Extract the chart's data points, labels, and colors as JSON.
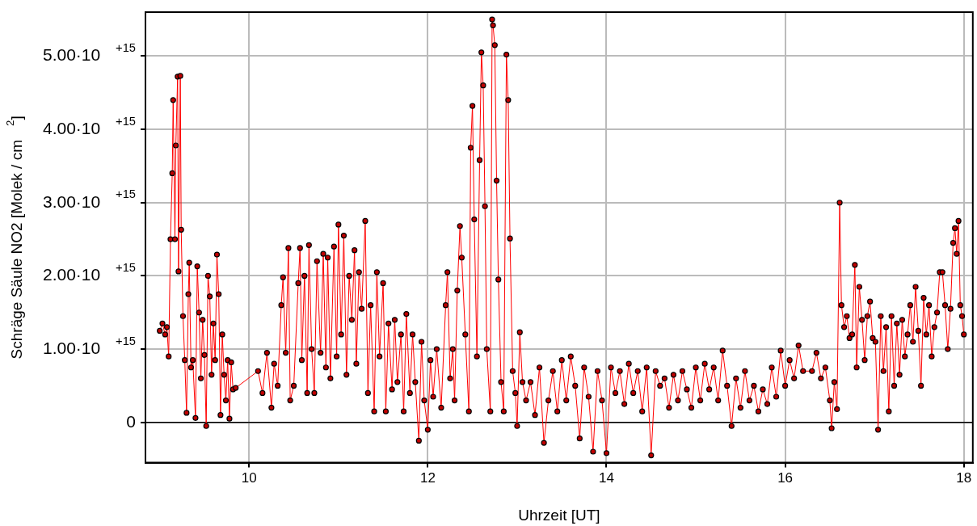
{
  "chart_data": {
    "type": "line",
    "xlabel": "Uhrzeit [UT]",
    "ylabel": "Schräge Säule NO2 [Molek / cm$^{2}$]",
    "xlim": [
      8.84,
      18.1
    ],
    "xticks": [
      10,
      12,
      14,
      16,
      18
    ],
    "ylim": [
      -550000000000000.0,
      5600000000000000.0
    ],
    "yticks": [
      {
        "value": 0,
        "label": "0"
      },
      {
        "value": 1000000000000000.0,
        "label": "1.00·10$^{+15}$"
      },
      {
        "value": 2000000000000000.0,
        "label": "2.00·10$^{+15}$"
      },
      {
        "value": 3000000000000000.0,
        "label": "3.00·10$^{+15}$"
      },
      {
        "value": 4000000000000000.0,
        "label": "4.00·10$^{+15}$"
      },
      {
        "value": 5000000000000000.0,
        "label": "5.00·10$^{+15}$"
      }
    ],
    "grid": true,
    "legend": false,
    "marker": "circle",
    "line_style": "solid",
    "ref_lines": [
      {
        "axis": "y",
        "value": 0,
        "color": "#000000"
      }
    ],
    "series": [
      {
        "color": "#ff0000",
        "x": [
          9.0,
          9.03,
          9.06,
          9.08,
          9.1,
          9.12,
          9.14,
          9.15,
          9.17,
          9.18,
          9.2,
          9.21,
          9.23,
          9.24,
          9.26,
          9.28,
          9.3,
          9.32,
          9.33,
          9.35,
          9.37,
          9.4,
          9.42,
          9.44,
          9.46,
          9.48,
          9.5,
          9.52,
          9.54,
          9.56,
          9.58,
          9.6,
          9.62,
          9.64,
          9.66,
          9.68,
          9.7,
          9.72,
          9.74,
          9.76,
          9.78,
          9.8,
          9.82,
          9.85,
          10.1,
          10.15,
          10.2,
          10.25,
          10.28,
          10.32,
          10.36,
          10.38,
          10.41,
          10.44,
          10.46,
          10.5,
          10.55,
          10.57,
          10.59,
          10.62,
          10.65,
          10.67,
          10.7,
          10.73,
          10.76,
          10.8,
          10.83,
          10.86,
          10.88,
          10.91,
          10.95,
          10.98,
          11.0,
          11.03,
          11.06,
          11.09,
          11.12,
          11.15,
          11.18,
          11.2,
          11.23,
          11.26,
          11.3,
          11.33,
          11.36,
          11.4,
          11.43,
          11.46,
          11.5,
          11.53,
          11.56,
          11.6,
          11.63,
          11.66,
          11.7,
          11.73,
          11.76,
          11.8,
          11.83,
          11.86,
          11.9,
          11.93,
          11.96,
          12.0,
          12.03,
          12.06,
          12.1,
          12.15,
          12.2,
          12.22,
          12.25,
          12.28,
          12.3,
          12.33,
          12.36,
          12.38,
          12.42,
          12.46,
          12.48,
          12.5,
          12.52,
          12.55,
          12.58,
          12.6,
          12.62,
          12.64,
          12.66,
          12.7,
          12.72,
          12.73,
          12.75,
          12.77,
          12.79,
          12.82,
          12.85,
          12.88,
          12.9,
          12.92,
          12.95,
          12.98,
          13.0,
          13.03,
          13.06,
          13.1,
          13.15,
          13.2,
          13.25,
          13.3,
          13.35,
          13.4,
          13.45,
          13.5,
          13.55,
          13.6,
          13.65,
          13.7,
          13.75,
          13.8,
          13.85,
          13.9,
          13.95,
          14.0,
          14.05,
          14.1,
          14.15,
          14.2,
          14.25,
          14.3,
          14.35,
          14.4,
          14.45,
          14.5,
          14.55,
          14.6,
          14.65,
          14.7,
          14.75,
          14.8,
          14.85,
          14.9,
          14.95,
          15.0,
          15.05,
          15.1,
          15.15,
          15.2,
          15.25,
          15.3,
          15.35,
          15.4,
          15.45,
          15.5,
          15.55,
          15.6,
          15.65,
          15.7,
          15.75,
          15.8,
          15.85,
          15.9,
          15.95,
          16.0,
          16.05,
          16.1,
          16.15,
          16.2,
          16.3,
          16.35,
          16.4,
          16.45,
          16.5,
          16.52,
          16.55,
          16.58,
          16.61,
          16.63,
          16.66,
          16.69,
          16.72,
          16.75,
          16.78,
          16.8,
          16.83,
          16.86,
          16.89,
          16.92,
          16.95,
          16.98,
          17.01,
          17.04,
          17.07,
          17.1,
          17.13,
          17.16,
          17.19,
          17.22,
          17.25,
          17.28,
          17.31,
          17.34,
          17.37,
          17.4,
          17.43,
          17.46,
          17.49,
          17.52,
          17.55,
          17.58,
          17.61,
          17.64,
          17.67,
          17.7,
          17.73,
          17.76,
          17.79,
          17.82,
          17.85,
          17.88,
          17.9,
          17.92,
          17.94,
          17.96,
          17.98,
          18.0
        ],
        "values": [
          1250000000000000.0,
          1350000000000000.0,
          1200000000000000.0,
          1300000000000000.0,
          900000000000000.0,
          2500000000000000.0,
          3400000000000000.0,
          4400000000000000.0,
          2500000000000000.0,
          3780000000000000.0,
          4720000000000000.0,
          2060000000000000.0,
          4730000000000000.0,
          2630000000000000.0,
          1450000000000000.0,
          850000000000000.0,
          130000000000000.0,
          1750000000000000.0,
          2180000000000000.0,
          750000000000000.0,
          850000000000000.0,
          60000000000000.0,
          2130000000000000.0,
          1500000000000000.0,
          600000000000000.0,
          1400000000000000.0,
          920000000000000.0,
          -50000000000000.0,
          2000000000000000.0,
          1720000000000000.0,
          650000000000000.0,
          1350000000000000.0,
          850000000000000.0,
          2290000000000000.0,
          1750000000000000.0,
          100000000000000.0,
          1200000000000000.0,
          650000000000000.0,
          300000000000000.0,
          850000000000000.0,
          50000000000000.0,
          820000000000000.0,
          450000000000000.0,
          470000000000000.0,
          700000000000000.0,
          400000000000000.0,
          950000000000000.0,
          200000000000000.0,
          800000000000000.0,
          500000000000000.0,
          1600000000000000.0,
          1980000000000000.0,
          950000000000000.0,
          2380000000000000.0,
          300000000000000.0,
          500000000000000.0,
          1900000000000000.0,
          2380000000000000.0,
          850000000000000.0,
          2000000000000000.0,
          400000000000000.0,
          2420000000000000.0,
          1000000000000000.0,
          400000000000000.0,
          2200000000000000.0,
          950000000000000.0,
          2300000000000000.0,
          750000000000000.0,
          2250000000000000.0,
          600000000000000.0,
          2400000000000000.0,
          900000000000000.0,
          2700000000000000.0,
          1200000000000000.0,
          2550000000000000.0,
          650000000000000.0,
          2000000000000000.0,
          1400000000000000.0,
          2350000000000000.0,
          800000000000000.0,
          2050000000000000.0,
          1550000000000000.0,
          2750000000000000.0,
          400000000000000.0,
          1600000000000000.0,
          150000000000000.0,
          2050000000000000.0,
          900000000000000.0,
          1900000000000000.0,
          150000000000000.0,
          1350000000000000.0,
          450000000000000.0,
          1400000000000000.0,
          550000000000000.0,
          1200000000000000.0,
          150000000000000.0,
          1480000000000000.0,
          400000000000000.0,
          1200000000000000.0,
          550000000000000.0,
          -250000000000000.0,
          1100000000000000.0,
          300000000000000.0,
          -100000000000000.0,
          850000000000000.0,
          350000000000000.0,
          1000000000000000.0,
          200000000000000.0,
          1600000000000000.0,
          2050000000000000.0,
          600000000000000.0,
          1000000000000000.0,
          300000000000000.0,
          1800000000000000.0,
          2680000000000000.0,
          2250000000000000.0,
          1200000000000000.0,
          150000000000000.0,
          3750000000000000.0,
          4320000000000000.0,
          2770000000000000.0,
          900000000000000.0,
          3580000000000000.0,
          5050000000000000.0,
          4600000000000000.0,
          2950000000000000.0,
          1000000000000000.0,
          150000000000000.0,
          5500000000000000.0,
          5420000000000000.0,
          5150000000000000.0,
          3300000000000000.0,
          1950000000000000.0,
          550000000000000.0,
          150000000000000.0,
          5020000000000000.0,
          4400000000000000.0,
          2510000000000000.0,
          700000000000000.0,
          400000000000000.0,
          -50000000000000.0,
          1230000000000000.0,
          550000000000000.0,
          300000000000000.0,
          550000000000000.0,
          100000000000000.0,
          750000000000000.0,
          -280000000000000.0,
          300000000000000.0,
          700000000000000.0,
          150000000000000.0,
          850000000000000.0,
          300000000000000.0,
          900000000000000.0,
          500000000000000.0,
          -220000000000000.0,
          750000000000000.0,
          350000000000000.0,
          -400000000000000.0,
          700000000000000.0,
          300000000000000.0,
          -420000000000000.0,
          750000000000000.0,
          400000000000000.0,
          700000000000000.0,
          250000000000000.0,
          800000000000000.0,
          400000000000000.0,
          700000000000000.0,
          150000000000000.0,
          750000000000000.0,
          -450000000000000.0,
          700000000000000.0,
          500000000000000.0,
          600000000000000.0,
          200000000000000.0,
          650000000000000.0,
          300000000000000.0,
          700000000000000.0,
          450000000000000.0,
          200000000000000.0,
          750000000000000.0,
          300000000000000.0,
          800000000000000.0,
          450000000000000.0,
          750000000000000.0,
          300000000000000.0,
          980000000000000.0,
          500000000000000.0,
          -50000000000000.0,
          600000000000000.0,
          200000000000000.0,
          700000000000000.0,
          300000000000000.0,
          500000000000000.0,
          150000000000000.0,
          450000000000000.0,
          250000000000000.0,
          750000000000000.0,
          350000000000000.0,
          980000000000000.0,
          500000000000000.0,
          850000000000000.0,
          600000000000000.0,
          1050000000000000.0,
          700000000000000.0,
          700000000000000.0,
          950000000000000.0,
          600000000000000.0,
          750000000000000.0,
          300000000000000.0,
          -80000000000000.0,
          550000000000000.0,
          180000000000000.0,
          3000000000000000.0,
          1600000000000000.0,
          1300000000000000.0,
          1450000000000000.0,
          1150000000000000.0,
          1200000000000000.0,
          2150000000000000.0,
          750000000000000.0,
          1850000000000000.0,
          1400000000000000.0,
          850000000000000.0,
          1450000000000000.0,
          1650000000000000.0,
          1150000000000000.0,
          1100000000000000.0,
          -100000000000000.0,
          1450000000000000.0,
          700000000000000.0,
          1300000000000000.0,
          150000000000000.0,
          1450000000000000.0,
          500000000000000.0,
          1350000000000000.0,
          650000000000000.0,
          1400000000000000.0,
          900000000000000.0,
          1200000000000000.0,
          1600000000000000.0,
          1100000000000000.0,
          1850000000000000.0,
          1250000000000000.0,
          500000000000000.0,
          1700000000000000.0,
          1200000000000000.0,
          1600000000000000.0,
          900000000000000.0,
          1300000000000000.0,
          1500000000000000.0,
          2050000000000000.0,
          2050000000000000.0,
          1600000000000000.0,
          1000000000000000.0,
          1550000000000000.0,
          2450000000000000.0,
          2650000000000000.0,
          2300000000000000.0,
          2750000000000000.0,
          1600000000000000.0,
          1450000000000000.0,
          1200000000000000.0
        ]
      }
    ]
  }
}
